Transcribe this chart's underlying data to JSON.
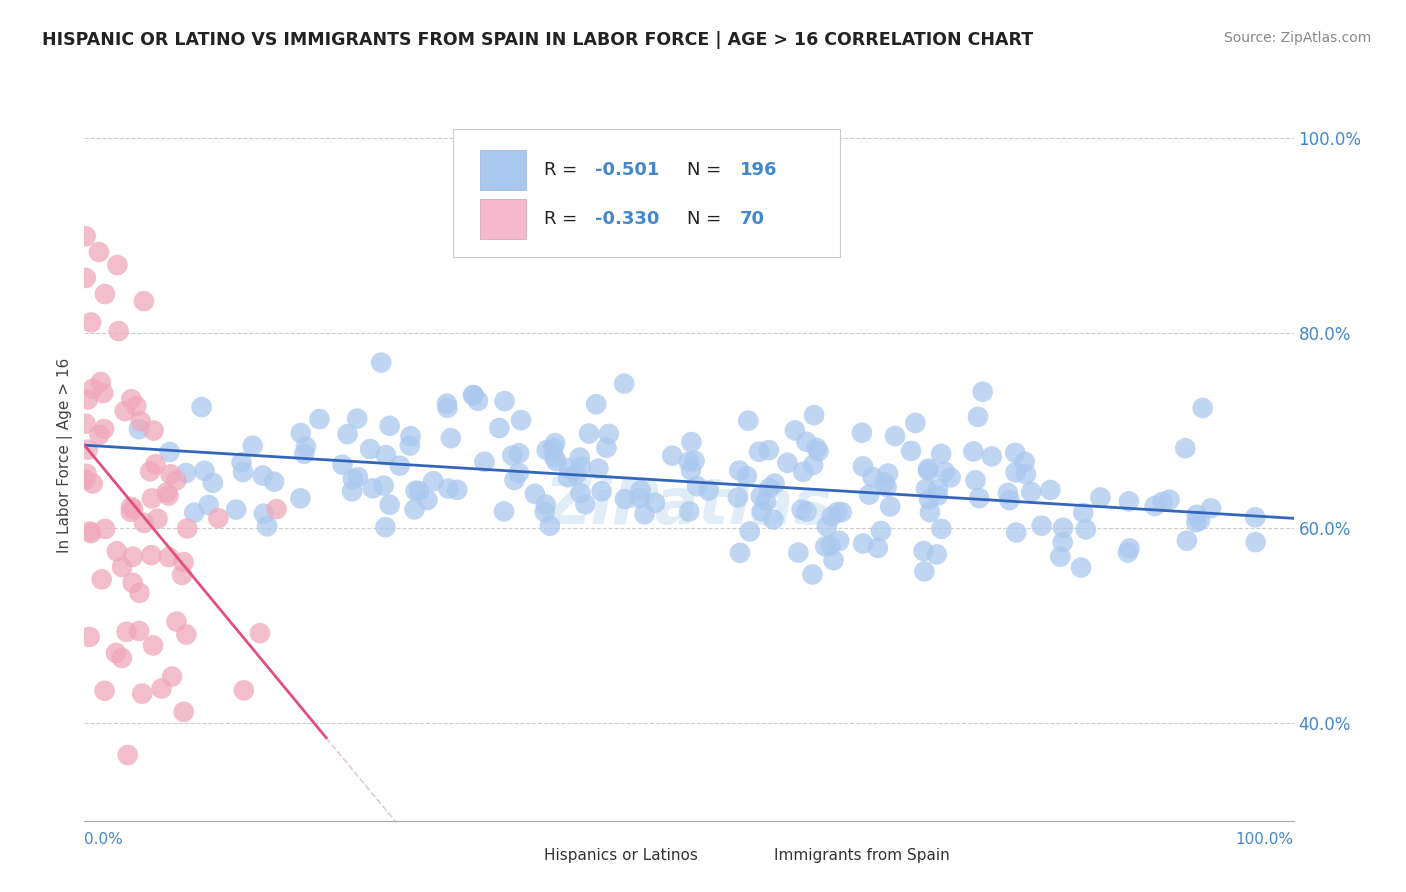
{
  "title": "HISPANIC OR LATINO VS IMMIGRANTS FROM SPAIN IN LABOR FORCE | AGE > 16 CORRELATION CHART",
  "source_text": "Source: ZipAtlas.com",
  "ylabel": "In Labor Force | Age > 16",
  "legend1_R": "-0.501",
  "legend1_N": "196",
  "legend2_R": "-0.330",
  "legend2_N": "70",
  "blue_scatter_color": "#aac8ee",
  "pink_scatter_color": "#f0a8bc",
  "blue_line_color": "#3366bb",
  "pink_line_color": "#e0507a",
  "legend_blue_face": "#aac8ee",
  "legend_pink_face": "#f5b8cc",
  "watermark": "ZiPatlas",
  "background_color": "#ffffff",
  "axis_color": "#4488cc",
  "seed": 42,
  "blue_n": 196,
  "pink_n": 70,
  "blue_intercept": 0.685,
  "blue_slope": -0.075,
  "blue_noise": 0.042,
  "pink_intercept": 0.685,
  "pink_slope": -1.5,
  "pink_noise": 0.12,
  "ylim_min": 0.3,
  "ylim_max": 1.05,
  "ytick_vals": [
    0.4,
    0.6,
    0.8,
    1.0
  ],
  "ytick_labels": [
    "40.0%",
    "60.0%",
    "80.0%",
    "100.0%"
  ]
}
